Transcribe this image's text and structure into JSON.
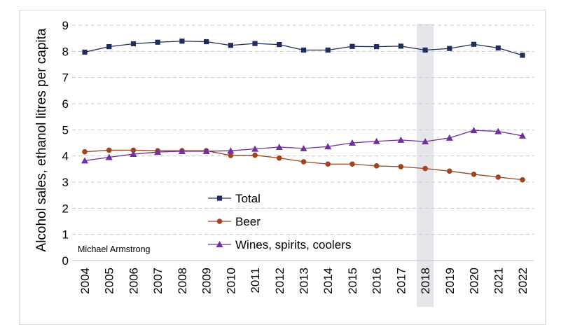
{
  "chart_data": {
    "type": "line",
    "title": "",
    "xlabel": "",
    "ylabel": "Alcohol sales, ethanol litres per capita",
    "x": [
      "2004",
      "2005",
      "2006",
      "2007",
      "2008",
      "2009",
      "2010",
      "2011",
      "2012",
      "2013",
      "2014",
      "2015",
      "2016",
      "2017",
      "2018",
      "2019",
      "2020",
      "2021",
      "2022"
    ],
    "ylim": [
      0,
      9
    ],
    "yticks": [
      "0",
      "1",
      "2",
      "3",
      "4",
      "5",
      "6",
      "7",
      "8",
      "9"
    ],
    "grid": "horizontal dashed",
    "legend_position": "lower-middle",
    "highlight_category": "2018",
    "attribution": "Michael Armstrong",
    "series": [
      {
        "name": "Total",
        "marker": "square",
        "color": "#1f2d5c",
        "values": [
          7.97,
          8.18,
          8.29,
          8.35,
          8.39,
          8.37,
          8.23,
          8.3,
          8.26,
          8.05,
          8.05,
          8.19,
          8.18,
          8.2,
          8.05,
          8.11,
          8.27,
          8.13,
          7.85
        ]
      },
      {
        "name": "Beer",
        "marker": "circle",
        "color": "#a0451d",
        "values": [
          4.16,
          4.22,
          4.22,
          4.2,
          4.2,
          4.2,
          4.02,
          4.03,
          3.92,
          3.78,
          3.69,
          3.69,
          3.62,
          3.59,
          3.52,
          3.42,
          3.3,
          3.19,
          3.09
        ]
      },
      {
        "name": "Wines, spirits, coolers",
        "marker": "triangle",
        "color": "#7030a0",
        "values": [
          3.82,
          3.95,
          4.07,
          4.15,
          4.18,
          4.18,
          4.2,
          4.27,
          4.34,
          4.29,
          4.36,
          4.5,
          4.56,
          4.61,
          4.55,
          4.69,
          4.98,
          4.94,
          4.77
        ]
      }
    ]
  }
}
